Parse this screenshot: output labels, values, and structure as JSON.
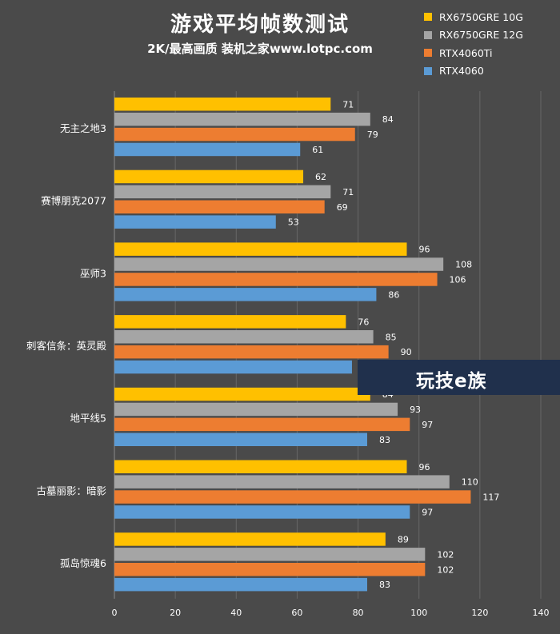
{
  "header": {
    "title": "游戏平均帧数测试",
    "subtitle": "2K/最高画质 装机之家www.lotpc.com"
  },
  "watermark": {
    "text": "玩技e族"
  },
  "colors": {
    "background": "#4a4a4a",
    "gridline": "#666666"
  },
  "chart_data": {
    "type": "bar",
    "orientation": "horizontal",
    "title": "游戏平均帧数测试",
    "subtitle": "2K/最高画质 装机之家www.lotpc.com",
    "categories": [
      "无主之地3",
      "赛博朋克2077",
      "巫师3",
      "刺客信条：英灵殿",
      "地平线5",
      "古墓丽影：暗影",
      "孤岛惊魂6"
    ],
    "series": [
      {
        "name": "RX6750GRE 10G",
        "color": "#ffc000",
        "values": [
          71,
          62,
          96,
          76,
          84,
          96,
          89
        ]
      },
      {
        "name": "RX6750GRE 12G",
        "color": "#a5a5a5",
        "values": [
          84,
          71,
          108,
          85,
          93,
          110,
          102
        ]
      },
      {
        "name": "RTX4060Ti",
        "color": "#ed7d31",
        "values": [
          79,
          69,
          106,
          90,
          97,
          117,
          102
        ]
      },
      {
        "name": "RTX4060",
        "color": "#5b9bd5",
        "values": [
          61,
          53,
          86,
          78,
          83,
          97,
          83
        ]
      }
    ],
    "xlim": [
      0,
      140
    ],
    "xticks": [
      "0",
      "20",
      "40",
      "60",
      "80",
      "100",
      "120",
      "140"
    ],
    "grid": true,
    "legend_position": "top-right",
    "xlabel": "",
    "ylabel": ""
  }
}
